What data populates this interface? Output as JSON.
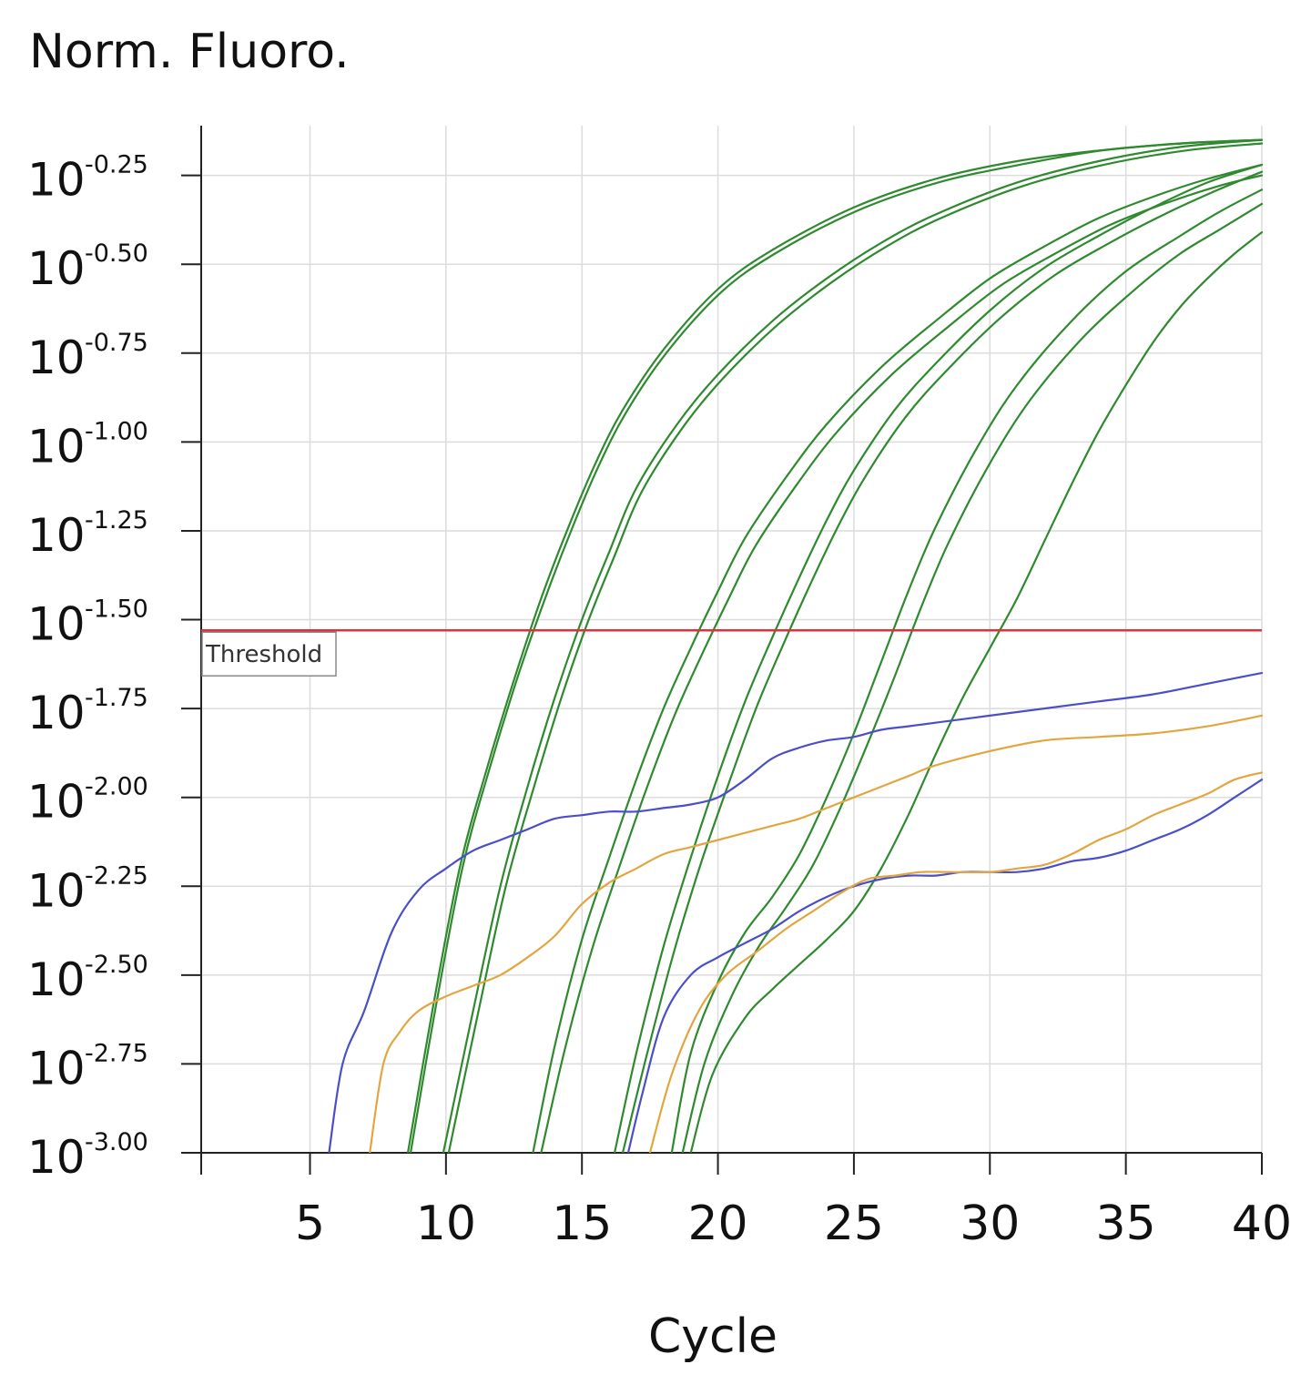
{
  "chart_data": {
    "type": "line",
    "title": "Norm. Fluoro.",
    "xlabel": "Cycle",
    "ylabel": "",
    "y_scale": "log10",
    "xlim": [
      1,
      40
    ],
    "ylim": [
      -3.0,
      -0.11
    ],
    "x_ticks": [
      5,
      10,
      15,
      20,
      25,
      30,
      35,
      40
    ],
    "x_tick_labels": [
      "5",
      "10",
      "15",
      "20",
      "25",
      "30",
      "35",
      "40"
    ],
    "y_ticks": [
      -0.25,
      -0.5,
      -0.75,
      -1.0,
      -1.25,
      -1.5,
      -1.75,
      -2.0,
      -2.25,
      -2.5,
      -2.75,
      -3.0
    ],
    "y_tick_labels": [
      {
        "base": "10",
        "exp": "-0.25"
      },
      {
        "base": "10",
        "exp": "-0.50"
      },
      {
        "base": "10",
        "exp": "-0.75"
      },
      {
        "base": "10",
        "exp": "-1.00"
      },
      {
        "base": "10",
        "exp": "-1.25"
      },
      {
        "base": "10",
        "exp": "-1.50"
      },
      {
        "base": "10",
        "exp": "-1.75"
      },
      {
        "base": "10",
        "exp": "-2.00"
      },
      {
        "base": "10",
        "exp": "-2.25"
      },
      {
        "base": "10",
        "exp": "-2.50"
      },
      {
        "base": "10",
        "exp": "-2.75"
      },
      {
        "base": "10",
        "exp": "-3.00"
      }
    ],
    "grid": true,
    "legend": "none",
    "threshold": {
      "label": "Threshold",
      "y": -1.53,
      "color": "#e0303a"
    },
    "colors": {
      "sample": "#2f8a2f",
      "blue": "#4a4fc8",
      "orange": "#e2a640"
    },
    "series": [
      {
        "color": "#2f8a2f",
        "x": [
          8.6,
          9.5,
          10.5,
          11.5,
          12.5,
          13.5,
          14.5,
          15.5,
          16.5,
          18,
          20,
          22,
          25,
          28,
          31,
          34,
          37,
          40
        ],
        "y": [
          -3.0,
          -2.6,
          -2.2,
          -1.92,
          -1.67,
          -1.44,
          -1.24,
          -1.06,
          -0.91,
          -0.74,
          -0.57,
          -0.46,
          -0.34,
          -0.26,
          -0.21,
          -0.18,
          -0.16,
          -0.15
        ]
      },
      {
        "color": "#2f8a2f",
        "x": [
          8.7,
          9.6,
          10.6,
          11.6,
          12.6,
          13.6,
          14.6,
          15.6,
          16.6,
          18.1,
          20.1,
          22.1,
          25.1,
          28.1,
          31.1,
          34.1,
          37.1,
          40
        ],
        "y": [
          -3.0,
          -2.6,
          -2.2,
          -1.92,
          -1.67,
          -1.45,
          -1.25,
          -1.07,
          -0.92,
          -0.75,
          -0.58,
          -0.47,
          -0.35,
          -0.27,
          -0.22,
          -0.18,
          -0.16,
          -0.15
        ]
      },
      {
        "color": "#2f8a2f",
        "x": [
          9.9,
          11,
          12,
          13,
          14,
          15,
          16,
          17,
          18.5,
          20,
          22,
          24,
          26,
          28,
          31,
          34,
          37,
          40
        ],
        "y": [
          -3.0,
          -2.6,
          -2.25,
          -1.97,
          -1.72,
          -1.5,
          -1.31,
          -1.13,
          -0.95,
          -0.81,
          -0.66,
          -0.54,
          -0.44,
          -0.36,
          -0.27,
          -0.21,
          -0.17,
          -0.15
        ]
      },
      {
        "color": "#2f8a2f",
        "x": [
          10.1,
          11.2,
          12.2,
          13.2,
          14.2,
          15.2,
          16.2,
          17.2,
          18.7,
          20.2,
          22.2,
          24.2,
          26.2,
          28.2,
          31.2,
          34.2,
          37.2,
          40
        ],
        "y": [
          -3.0,
          -2.6,
          -2.25,
          -1.98,
          -1.73,
          -1.51,
          -1.32,
          -1.14,
          -0.96,
          -0.82,
          -0.67,
          -0.55,
          -0.45,
          -0.37,
          -0.28,
          -0.22,
          -0.18,
          -0.16
        ]
      },
      {
        "color": "#2f8a2f",
        "x": [
          13.2,
          14,
          15,
          16,
          17,
          18,
          19,
          20,
          21,
          22.5,
          24,
          26,
          28,
          30,
          32,
          34,
          36,
          38,
          40
        ],
        "y": [
          -3.0,
          -2.7,
          -2.4,
          -2.17,
          -1.95,
          -1.75,
          -1.58,
          -1.42,
          -1.27,
          -1.1,
          -0.95,
          -0.79,
          -0.66,
          -0.54,
          -0.45,
          -0.37,
          -0.31,
          -0.26,
          -0.22
        ]
      },
      {
        "color": "#2f8a2f",
        "x": [
          13.5,
          14.4,
          15.4,
          16.4,
          17.4,
          18.4,
          19.4,
          20.4,
          21.4,
          22.9,
          24.4,
          26.4,
          28.4,
          30.4,
          32.4,
          34.4,
          36.4,
          38.4,
          40
        ],
        "y": [
          -3.0,
          -2.7,
          -2.42,
          -2.19,
          -1.97,
          -1.77,
          -1.6,
          -1.44,
          -1.29,
          -1.12,
          -0.97,
          -0.81,
          -0.68,
          -0.56,
          -0.47,
          -0.39,
          -0.33,
          -0.28,
          -0.25
        ]
      },
      {
        "color": "#2f8a2f",
        "x": [
          16.2,
          17,
          18,
          19,
          20,
          21,
          22,
          23,
          24,
          25,
          26.5,
          28,
          30,
          32,
          34,
          36,
          38,
          40
        ],
        "y": [
          -3.0,
          -2.72,
          -2.42,
          -2.17,
          -1.94,
          -1.73,
          -1.55,
          -1.38,
          -1.22,
          -1.08,
          -0.91,
          -0.78,
          -0.63,
          -0.51,
          -0.42,
          -0.34,
          -0.27,
          -0.22
        ]
      },
      {
        "color": "#2f8a2f",
        "x": [
          16.5,
          17.4,
          18.4,
          19.4,
          20.4,
          21.4,
          22.4,
          23.4,
          24.4,
          25.4,
          26.9,
          28.4,
          30.4,
          32.4,
          34.4,
          36.4,
          38.4,
          40
        ],
        "y": [
          -3.0,
          -2.72,
          -2.43,
          -2.18,
          -1.96,
          -1.75,
          -1.57,
          -1.4,
          -1.24,
          -1.1,
          -0.93,
          -0.8,
          -0.65,
          -0.53,
          -0.44,
          -0.36,
          -0.29,
          -0.24
        ]
      },
      {
        "color": "#2f8a2f",
        "x": [
          18.3,
          19,
          20,
          21,
          22,
          23,
          24,
          25,
          26,
          27,
          28,
          29.5,
          31,
          33,
          35,
          37,
          38.5,
          40
        ],
        "y": [
          -3.0,
          -2.72,
          -2.52,
          -2.38,
          -2.28,
          -2.16,
          -2.0,
          -1.82,
          -1.62,
          -1.42,
          -1.24,
          -1.02,
          -0.84,
          -0.66,
          -0.52,
          -0.42,
          -0.35,
          -0.29
        ]
      },
      {
        "color": "#2f8a2f",
        "x": [
          18.7,
          19.5,
          20.5,
          21.5,
          22.5,
          23.5,
          24.5,
          25.5,
          26.5,
          27.5,
          28.5,
          30,
          31.5,
          33.5,
          35.5,
          37,
          38.5,
          40
        ],
        "y": [
          -3.0,
          -2.75,
          -2.56,
          -2.42,
          -2.31,
          -2.19,
          -2.03,
          -1.85,
          -1.66,
          -1.46,
          -1.28,
          -1.06,
          -0.88,
          -0.7,
          -0.56,
          -0.47,
          -0.4,
          -0.33
        ]
      },
      {
        "color": "#2f8a2f",
        "x": [
          19.0,
          19.8,
          21,
          22,
          23,
          24,
          25,
          26,
          27,
          28,
          29,
          30,
          31,
          32,
          33,
          34,
          35,
          36,
          37,
          38,
          39,
          40
        ],
        "y": [
          -3.0,
          -2.78,
          -2.62,
          -2.54,
          -2.47,
          -2.4,
          -2.32,
          -2.2,
          -2.05,
          -1.88,
          -1.72,
          -1.58,
          -1.44,
          -1.28,
          -1.12,
          -0.97,
          -0.84,
          -0.72,
          -0.62,
          -0.54,
          -0.47,
          -0.41
        ]
      },
      {
        "color": "#4a4fc8",
        "x": [
          5.7,
          6.2,
          7,
          8,
          9,
          10,
          11,
          12,
          13,
          14,
          15,
          16,
          17,
          18,
          19,
          20,
          21,
          22,
          23,
          24,
          25,
          26,
          27,
          28,
          30,
          32,
          34,
          36,
          38,
          40
        ],
        "y": [
          -3.0,
          -2.75,
          -2.6,
          -2.38,
          -2.26,
          -2.2,
          -2.15,
          -2.12,
          -2.09,
          -2.06,
          -2.05,
          -2.04,
          -2.04,
          -2.03,
          -2.02,
          -2.0,
          -1.95,
          -1.89,
          -1.86,
          -1.84,
          -1.83,
          -1.81,
          -1.8,
          -1.79,
          -1.77,
          -1.75,
          -1.73,
          -1.71,
          -1.68,
          -1.65
        ]
      },
      {
        "color": "#e2a640",
        "x": [
          7.2,
          7.7,
          8.3,
          9,
          10,
          11,
          12,
          13,
          14,
          15,
          16,
          17,
          18,
          19,
          20,
          21,
          22,
          23,
          24,
          25,
          26,
          27,
          28,
          30,
          32,
          34,
          36,
          38,
          40
        ],
        "y": [
          -3.0,
          -2.75,
          -2.66,
          -2.6,
          -2.56,
          -2.53,
          -2.5,
          -2.45,
          -2.39,
          -2.3,
          -2.24,
          -2.2,
          -2.16,
          -2.14,
          -2.12,
          -2.1,
          -2.08,
          -2.06,
          -2.03,
          -2.0,
          -1.97,
          -1.94,
          -1.91,
          -1.87,
          -1.84,
          -1.83,
          -1.82,
          -1.8,
          -1.77
        ]
      },
      {
        "color": "#4a4fc8",
        "x": [
          16.7,
          17.2,
          18,
          19,
          20,
          21,
          22,
          23,
          24,
          25,
          26,
          27,
          28,
          29,
          30,
          31,
          32,
          33,
          34,
          35,
          36,
          37,
          38,
          39,
          40
        ],
        "y": [
          -3.0,
          -2.84,
          -2.62,
          -2.5,
          -2.45,
          -2.41,
          -2.37,
          -2.32,
          -2.28,
          -2.25,
          -2.23,
          -2.22,
          -2.22,
          -2.21,
          -2.21,
          -2.21,
          -2.2,
          -2.18,
          -2.17,
          -2.15,
          -2.12,
          -2.09,
          -2.05,
          -2.0,
          -1.95
        ]
      },
      {
        "color": "#e2a640",
        "x": [
          17.5,
          18.3,
          19.3,
          20.3,
          21.5,
          22.5,
          23.5,
          24.5,
          25.5,
          26.5,
          27.5,
          28.5,
          30,
          31,
          32,
          33,
          34,
          35,
          36,
          37,
          38,
          39,
          40
        ],
        "y": [
          -3.0,
          -2.78,
          -2.6,
          -2.5,
          -2.43,
          -2.37,
          -2.32,
          -2.27,
          -2.23,
          -2.22,
          -2.21,
          -2.21,
          -2.21,
          -2.2,
          -2.19,
          -2.16,
          -2.12,
          -2.09,
          -2.05,
          -2.02,
          -1.99,
          -1.95,
          -1.93
        ]
      }
    ]
  }
}
